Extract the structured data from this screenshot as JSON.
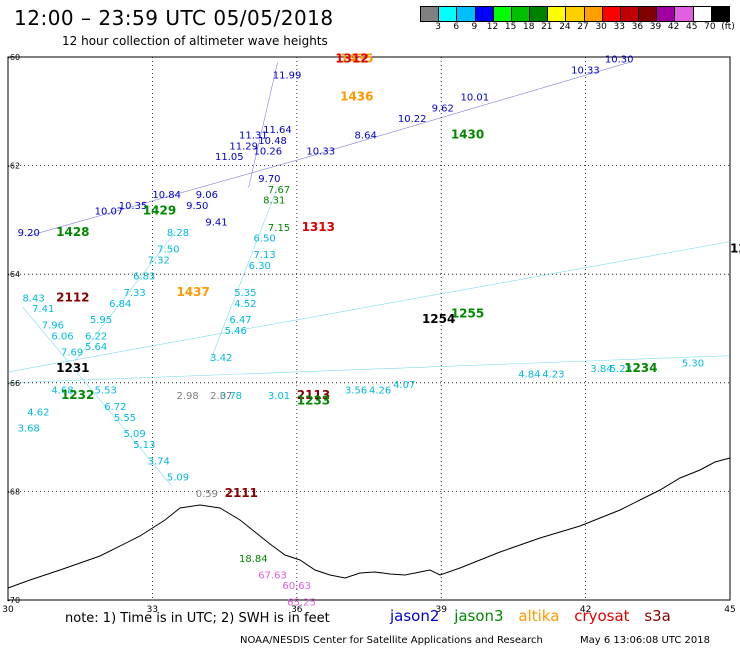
{
  "header": {
    "title": "12:00 – 23:59 UTC 05/05/2018",
    "subtitle": "12 hour collection of altimeter wave heights"
  },
  "legend": {
    "colors": [
      "#808080",
      "#00ffff",
      "#00bfff",
      "#0000ff",
      "#00ff00",
      "#00c000",
      "#008000",
      "#ffff00",
      "#ffd000",
      "#ffa000",
      "#ff0000",
      "#c00000",
      "#800000",
      "#a000a0",
      "#e060e0",
      "#ffffff",
      "#000000"
    ],
    "labels": [
      "3",
      "6",
      "9",
      "12",
      "15",
      "18",
      "21",
      "24",
      "27",
      "30",
      "33",
      "36",
      "39",
      "42",
      "45",
      "70",
      "(ft)"
    ]
  },
  "axes": {
    "x_ticks": [
      "30",
      "33",
      "36",
      "39",
      "42",
      "45"
    ],
    "y_ticks": [
      "-60",
      "-62",
      "-64",
      "-66",
      "-68",
      "-70"
    ]
  },
  "missions": {
    "jason2": {
      "name": "jason2",
      "color": "#0000cc"
    },
    "jason3": {
      "name": "jason3",
      "color": "#008800"
    },
    "altika": {
      "name": "altika",
      "color": "#ff9900"
    },
    "cryosat": {
      "name": "cryosat",
      "color": "#dd0000"
    },
    "s3a": {
      "name": "s3a",
      "color": "#880000"
    }
  },
  "footer": {
    "note": "note:  1) Time is in UTC;  2) SWH is in feet",
    "credit": "NOAA/NESDIS Center for Satellite Applications and Research",
    "generated": "May  6 13:06:08 UTC 2018"
  },
  "time_labels": [
    {
      "text": "1428",
      "color": "#008800",
      "lon": 31.0,
      "lat": -63.3
    },
    {
      "text": "1429",
      "color": "#008800",
      "lon": 32.8,
      "lat": -62.9
    },
    {
      "text": "1430",
      "color": "#008800",
      "lon": 39.2,
      "lat": -61.5
    },
    {
      "text": "1435",
      "color": "#ff9900",
      "lon": 36.9,
      "lat": -60.1
    },
    {
      "text": "1436",
      "color": "#ff9900",
      "lon": 36.9,
      "lat": -60.8
    },
    {
      "text": "1437",
      "color": "#ff9900",
      "lon": 33.5,
      "lat": -64.4
    },
    {
      "text": "1312",
      "color": "#dd0000",
      "lon": 36.8,
      "lat": -60.1
    },
    {
      "text": "1313",
      "color": "#dd0000",
      "lon": 36.1,
      "lat": -63.2
    },
    {
      "text": "2112",
      "color": "#880000",
      "lon": 31.0,
      "lat": -64.5
    },
    {
      "text": "2111",
      "color": "#880000",
      "lon": 34.5,
      "lat": -68.1
    },
    {
      "text": "2113",
      "color": "#880000",
      "lon": 36.0,
      "lat": -66.3
    },
    {
      "text": "1255",
      "color": "#008800",
      "lon": 39.2,
      "lat": -64.8
    },
    {
      "text": "1232",
      "color": "#008800",
      "lon": 31.1,
      "lat": -66.3
    },
    {
      "text": "1234",
      "color": "#008800",
      "lon": 42.8,
      "lat": -65.8
    },
    {
      "text": "1233",
      "color": "#008800",
      "lon": 36.0,
      "lat": -66.4
    },
    {
      "text": "1253",
      "color": "#000000",
      "lon": 45.0,
      "lat": -63.6
    },
    {
      "text": "1254",
      "color": "#000000",
      "lon": 38.6,
      "lat": -64.9
    },
    {
      "text": "1231",
      "color": "#000000",
      "lon": 31.0,
      "lat": -65.8
    }
  ],
  "wave_labels": [
    {
      "text": "9.20",
      "color": "#0000cc",
      "lon": 30.2,
      "lat": -63.3
    },
    {
      "text": "10.07",
      "color": "#0000cc",
      "lon": 31.8,
      "lat": -62.9
    },
    {
      "text": "10.35",
      "color": "#0000cc",
      "lon": 32.3,
      "lat": -62.8
    },
    {
      "text": "10.84",
      "color": "#0000cc",
      "lon": 33.0,
      "lat": -62.6
    },
    {
      "text": "9.06",
      "color": "#0000cc",
      "lon": 33.9,
      "lat": -62.6
    },
    {
      "text": "9.50",
      "color": "#0000cc",
      "lon": 33.7,
      "lat": -62.8
    },
    {
      "text": "9.41",
      "color": "#0000cc",
      "lon": 34.1,
      "lat": -63.1
    },
    {
      "text": "11.05",
      "color": "#0000cc",
      "lon": 34.3,
      "lat": -61.9
    },
    {
      "text": "11.29",
      "color": "#0000cc",
      "lon": 34.6,
      "lat": -61.7
    },
    {
      "text": "11.31",
      "color": "#0000cc",
      "lon": 34.8,
      "lat": -61.5
    },
    {
      "text": "10.48",
      "color": "#0000cc",
      "lon": 35.2,
      "lat": -61.6
    },
    {
      "text": "10.26",
      "color": "#0000cc",
      "lon": 35.1,
      "lat": -61.8
    },
    {
      "text": "9.70",
      "color": "#0000cc",
      "lon": 35.2,
      "lat": -62.3
    },
    {
      "text": "11.64",
      "color": "#0000cc",
      "lon": 35.3,
      "lat": -61.4
    },
    {
      "text": "11.99",
      "color": "#0000cc",
      "lon": 35.5,
      "lat": -60.4
    },
    {
      "text": "10.33",
      "color": "#0000cc",
      "lon": 36.2,
      "lat": -61.8
    },
    {
      "text": "8.64",
      "color": "#0000cc",
      "lon": 37.2,
      "lat": -61.5
    },
    {
      "text": "10.22",
      "color": "#0000cc",
      "lon": 38.1,
      "lat": -61.2
    },
    {
      "text": "9.62",
      "color": "#0000cc",
      "lon": 38.8,
      "lat": -61.0
    },
    {
      "text": "10.01",
      "color": "#0000cc",
      "lon": 39.4,
      "lat": -60.8
    },
    {
      "text": "10.30",
      "color": "#0000cc",
      "lon": 42.4,
      "lat": -60.1
    },
    {
      "text": "10.33",
      "color": "#0000cc",
      "lon": 41.7,
      "lat": -60.3
    },
    {
      "text": "7.67",
      "color": "#008800",
      "lon": 35.4,
      "lat": -62.5
    },
    {
      "text": "8.31",
      "color": "#008800",
      "lon": 35.3,
      "lat": -62.7
    },
    {
      "text": "7.15",
      "color": "#008800",
      "lon": 35.4,
      "lat": -63.2
    },
    {
      "text": "6.50",
      "color": "#00bbdd",
      "lon": 35.1,
      "lat": -63.4
    },
    {
      "text": "7.13",
      "color": "#00bbdd",
      "lon": 35.1,
      "lat": -63.7
    },
    {
      "text": "6.30",
      "color": "#00bbdd",
      "lon": 35.0,
      "lat": -63.9
    },
    {
      "text": "5.35",
      "color": "#00bbdd",
      "lon": 34.7,
      "lat": -64.4
    },
    {
      "text": "4.52",
      "color": "#00bbdd",
      "lon": 34.7,
      "lat": -64.6
    },
    {
      "text": "6.47",
      "color": "#00bbdd",
      "lon": 34.6,
      "lat": -64.9
    },
    {
      "text": "5.46",
      "color": "#00bbdd",
      "lon": 34.5,
      "lat": -65.1
    },
    {
      "text": "3.42",
      "color": "#00bbdd",
      "lon": 34.2,
      "lat": -65.6
    },
    {
      "text": "8.28",
      "color": "#00bbdd",
      "lon": 33.3,
      "lat": -63.3
    },
    {
      "text": "7.50",
      "color": "#00bbdd",
      "lon": 33.1,
      "lat": -63.6
    },
    {
      "text": "7.32",
      "color": "#00bbdd",
      "lon": 32.9,
      "lat": -63.8
    },
    {
      "text": "6.83",
      "color": "#00bbdd",
      "lon": 32.6,
      "lat": -64.1
    },
    {
      "text": "7.33",
      "color": "#00bbdd",
      "lon": 32.4,
      "lat": -64.4
    },
    {
      "text": "6.84",
      "color": "#00bbdd",
      "lon": 32.1,
      "lat": -64.6
    },
    {
      "text": "5.95",
      "color": "#00bbdd",
      "lon": 31.7,
      "lat": -64.9
    },
    {
      "text": "6.22",
      "color": "#00bbdd",
      "lon": 31.6,
      "lat": -65.2
    },
    {
      "text": "8.43",
      "color": "#00bbdd",
      "lon": 30.3,
      "lat": -64.5
    },
    {
      "text": "7.41",
      "color": "#00bbdd",
      "lon": 30.5,
      "lat": -64.7
    },
    {
      "text": "7.96",
      "color": "#00bbdd",
      "lon": 30.7,
      "lat": -65.0
    },
    {
      "text": "6.06",
      "color": "#00bbdd",
      "lon": 30.9,
      "lat": -65.2
    },
    {
      "text": "7.69",
      "color": "#00bbdd",
      "lon": 31.1,
      "lat": -65.5
    },
    {
      "text": "5.64",
      "color": "#00bbdd",
      "lon": 31.6,
      "lat": -65.4
    },
    {
      "text": "4.68",
      "color": "#00bbdd",
      "lon": 30.9,
      "lat": -66.2
    },
    {
      "text": "4.62",
      "color": "#00bbdd",
      "lon": 30.4,
      "lat": -66.6
    },
    {
      "text": "3.68",
      "color": "#00bbdd",
      "lon": 30.2,
      "lat": -66.9
    },
    {
      "text": "5.53",
      "color": "#00bbdd",
      "lon": 31.8,
      "lat": -66.2
    },
    {
      "text": "6.72",
      "color": "#00bbdd",
      "lon": 32.0,
      "lat": -66.5
    },
    {
      "text": "5.55",
      "color": "#00bbdd",
      "lon": 32.2,
      "lat": -66.7
    },
    {
      "text": "5.09",
      "color": "#00bbdd",
      "lon": 32.4,
      "lat": -67.0
    },
    {
      "text": "5.13",
      "color": "#00bbdd",
      "lon": 32.6,
      "lat": -67.2
    },
    {
      "text": "3.74",
      "color": "#00bbdd",
      "lon": 32.9,
      "lat": -67.5
    },
    {
      "text": "5.09",
      "color": "#00bbdd",
      "lon": 33.3,
      "lat": -67.8
    },
    {
      "text": "3.78",
      "color": "#00bbdd",
      "lon": 34.4,
      "lat": -66.3
    },
    {
      "text": "3.01",
      "color": "#00bbdd",
      "lon": 35.4,
      "lat": -66.3
    },
    {
      "text": "3.56",
      "color": "#00bbdd",
      "lon": 37.0,
      "lat": -66.2
    },
    {
      "text": "4.26",
      "color": "#00bbdd",
      "lon": 37.5,
      "lat": -66.2
    },
    {
      "text": "4.07",
      "color": "#00bbdd",
      "lon": 38.0,
      "lat": -66.1
    },
    {
      "text": "4.84",
      "color": "#00bbdd",
      "lon": 40.6,
      "lat": -65.9
    },
    {
      "text": "4.23",
      "color": "#00bbdd",
      "lon": 41.1,
      "lat": -65.9
    },
    {
      "text": "3.84",
      "color": "#00bbdd",
      "lon": 42.1,
      "lat": -65.8
    },
    {
      "text": "5.23",
      "color": "#00bbdd",
      "lon": 42.5,
      "lat": -65.8
    },
    {
      "text": "5.30",
      "color": "#00bbdd",
      "lon": 44.0,
      "lat": -65.7
    },
    {
      "text": "2.98",
      "color": "#808080",
      "lon": 33.5,
      "lat": -66.3
    },
    {
      "text": "2.07",
      "color": "#808080",
      "lon": 34.2,
      "lat": -66.3
    },
    {
      "text": "0.59",
      "color": "#808080",
      "lon": 33.9,
      "lat": -68.1
    },
    {
      "text": "18.84",
      "color": "#008800",
      "lon": 34.8,
      "lat": -69.3
    },
    {
      "text": "67.63",
      "color": "#e060e0",
      "lon": 35.2,
      "lat": -69.6
    },
    {
      "text": "60.63",
      "color": "#e060e0",
      "lon": 35.7,
      "lat": -69.8
    },
    {
      "text": "65.25",
      "color": "#e060e0",
      "lon": 35.8,
      "lat": -70.1
    }
  ]
}
